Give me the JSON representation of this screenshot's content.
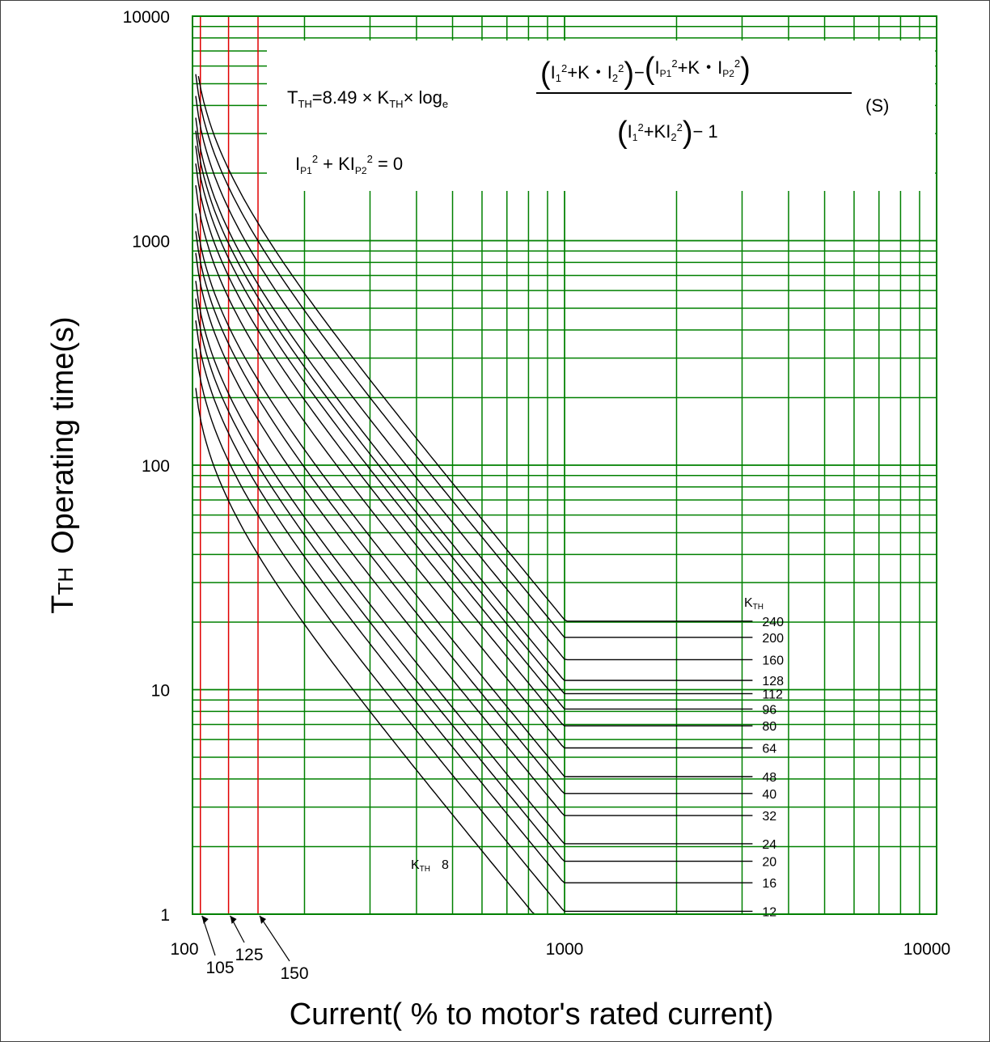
{
  "chart_data": {
    "type": "line",
    "xlabel": "Current( % to motor's rated current)",
    "ylabel_main": "T",
    "ylabel_sub": "TH",
    "ylabel_rest": "Operating time(s)",
    "x_scale": "log",
    "y_scale": "log",
    "xlim": [
      100,
      10000
    ],
    "ylim": [
      1,
      10000
    ],
    "x_ticks": [
      "100",
      "1000",
      "10000"
    ],
    "y_ticks": [
      "1",
      "10",
      "100",
      "1000",
      "10000"
    ],
    "grid": true,
    "grid_color": "#008000",
    "curve_color": "#000000",
    "marker_color": "#e00000",
    "markers": [
      {
        "x": 105,
        "label": "105"
      },
      {
        "x": 125,
        "label": "125"
      },
      {
        "x": 150,
        "label": "150"
      }
    ],
    "formula": {
      "lhs": "T",
      "lhs_sub": "TH",
      "eq": "=8.49 × K",
      "k_sub": "TH",
      "log_text": "× log",
      "log_sub": "e",
      "num_a": "I",
      "num_b": "1",
      "num_c": "2",
      "num_d": "+K・I",
      "num_e": "2",
      "num_f": "2",
      "num_g": "−",
      "num_h": "I",
      "num_i": "P1",
      "num_j": "2",
      "num_k": "+K・I",
      "num_l": "P2",
      "num_m": "2",
      "den_a": "I",
      "den_b": "1",
      "den_c": "2",
      "den_d": "+KI",
      "den_e": "2",
      "den_f": "2",
      "den_g": "− 1",
      "unit": "(S)",
      "cond_a": "I",
      "cond_b": "P1",
      "cond_c": "2",
      "cond_d": " + KI",
      "cond_e": "P2",
      "cond_f": "2",
      "cond_g": " = 0"
    },
    "kth_header": "K",
    "kth_header_sub": "TH",
    "kth_lowest_label": "K",
    "kth_lowest_sub": "TH",
    "kth_lowest_value": "8",
    "plateau_start_x": 1050,
    "label_x": 3200,
    "series": [
      {
        "name": "240",
        "k": 240,
        "plateau": 20.2
      },
      {
        "name": "200",
        "k": 200,
        "plateau": 17.1
      },
      {
        "name": "160",
        "k": 160,
        "plateau": 13.6
      },
      {
        "name": "128",
        "k": 128,
        "plateau": 11.0
      },
      {
        "name": "112",
        "k": 112,
        "plateau": 9.6
      },
      {
        "name": "96",
        "k": 96,
        "plateau": 8.2
      },
      {
        "name": "80",
        "k": 80,
        "plateau": 6.9
      },
      {
        "name": "64",
        "k": 64,
        "plateau": 5.5
      },
      {
        "name": "48",
        "k": 48,
        "plateau": 4.1
      },
      {
        "name": "40",
        "k": 40,
        "plateau": 3.45
      },
      {
        "name": "32",
        "k": 32,
        "plateau": 2.75
      },
      {
        "name": "24",
        "k": 24,
        "plateau": 2.06
      },
      {
        "name": "20",
        "k": 20,
        "plateau": 1.72
      },
      {
        "name": "16",
        "k": 16,
        "plateau": 1.38
      },
      {
        "name": "12",
        "k": 12,
        "plateau": 1.03
      },
      {
        "name": "8",
        "k": 8,
        "plateau": 1.0
      }
    ]
  }
}
